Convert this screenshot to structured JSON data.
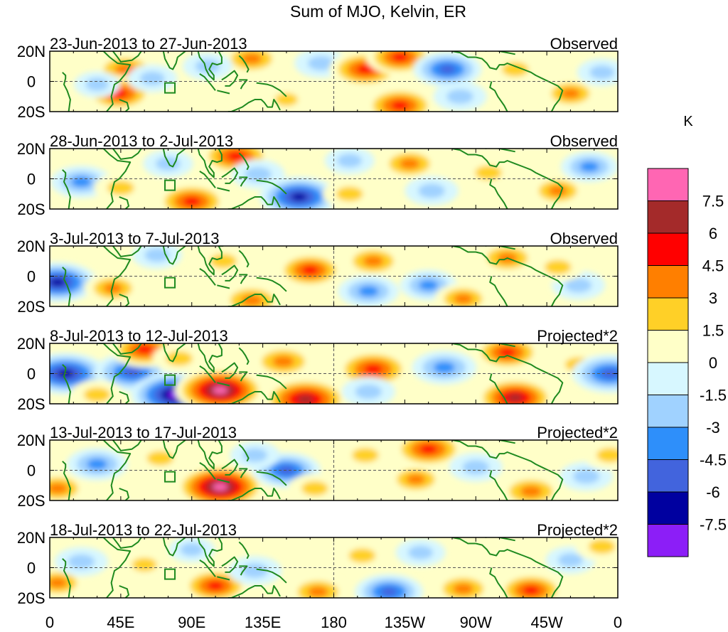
{
  "chart_data": {
    "type": "heatmap",
    "title": "Sum of MJO, Kelvin, ER",
    "colorbar_unit": "K",
    "colorbar_ticks": [
      "7.5",
      "6",
      "4.5",
      "3",
      "1.5",
      "0",
      "-1.5",
      "-3",
      "-4.5",
      "-6",
      "-7.5"
    ],
    "colorbar_colors": [
      "#ff66b3",
      "#a42a2a",
      "#ff0000",
      "#ff7f00",
      "#ffd027",
      "#ffffc8",
      "#d7f7ff",
      "#a0d2ff",
      "#2e8ffa",
      "#4264dd",
      "#0000a0",
      "#8c1ef7"
    ],
    "x_ticks": [
      "0",
      "45E",
      "90E",
      "135E",
      "180",
      "135W",
      "90W",
      "45W",
      "0"
    ],
    "x_values": [
      0,
      45,
      90,
      135,
      180,
      225,
      270,
      315,
      360
    ],
    "y_ticks": [
      "20N",
      "0",
      "20S"
    ],
    "y_values": [
      20,
      0,
      -20
    ],
    "xlim": [
      0,
      360
    ],
    "ylim": [
      -20,
      20
    ],
    "panels": [
      {
        "date_range": "23-Jun-2013 to 27-Jun-2013",
        "label": "Observed",
        "blobs": [
          {
            "lon": 48,
            "lat": 8,
            "v": 4.5
          },
          {
            "lon": 44,
            "lat": -8,
            "v": 5
          },
          {
            "lon": 65,
            "lat": 2,
            "v": -2.5
          },
          {
            "lon": 30,
            "lat": -2,
            "v": -2
          },
          {
            "lon": 128,
            "lat": 15,
            "v": 4
          },
          {
            "lon": 100,
            "lat": 10,
            "v": -2.5
          },
          {
            "lon": 172,
            "lat": 12,
            "v": -3
          },
          {
            "lon": 200,
            "lat": 8,
            "v": 5.5
          },
          {
            "lon": 222,
            "lat": 16,
            "v": 5
          },
          {
            "lon": 222,
            "lat": -16,
            "v": 5.5
          },
          {
            "lon": 252,
            "lat": 8,
            "v": -5
          },
          {
            "lon": 260,
            "lat": -10,
            "v": -3
          },
          {
            "lon": 295,
            "lat": 8,
            "v": 3
          },
          {
            "lon": 330,
            "lat": -8,
            "v": 3.5
          },
          {
            "lon": 350,
            "lat": 6,
            "v": -2.5
          },
          {
            "lon": 150,
            "lat": -12,
            "v": 2
          }
        ]
      },
      {
        "date_range": "28-Jun-2013 to 2-Jul-2013",
        "label": "Observed",
        "blobs": [
          {
            "lon": 20,
            "lat": -2,
            "v": -4
          },
          {
            "lon": 45,
            "lat": -6,
            "v": 3
          },
          {
            "lon": 90,
            "lat": -15,
            "v": 5.5
          },
          {
            "lon": 118,
            "lat": 15,
            "v": 5.5
          },
          {
            "lon": 132,
            "lat": 3,
            "v": -3
          },
          {
            "lon": 158,
            "lat": -12,
            "v": -6.5
          },
          {
            "lon": 190,
            "lat": -10,
            "v": 3
          },
          {
            "lon": 190,
            "lat": 12,
            "v": -2.5
          },
          {
            "lon": 228,
            "lat": 10,
            "v": 4
          },
          {
            "lon": 242,
            "lat": -8,
            "v": -3
          },
          {
            "lon": 278,
            "lat": 4,
            "v": 3
          },
          {
            "lon": 322,
            "lat": -8,
            "v": 3.5
          },
          {
            "lon": 342,
            "lat": 8,
            "v": -3.5
          },
          {
            "lon": 75,
            "lat": 10,
            "v": -2.5
          }
        ]
      },
      {
        "date_range": "3-Jul-2013 to 7-Jul-2013",
        "label": "Observed",
        "blobs": [
          {
            "lon": 5,
            "lat": -4,
            "v": -6.5
          },
          {
            "lon": 40,
            "lat": -8,
            "v": 3.5
          },
          {
            "lon": 68,
            "lat": 14,
            "v": -2.5
          },
          {
            "lon": 110,
            "lat": 10,
            "v": 3
          },
          {
            "lon": 128,
            "lat": -16,
            "v": 4.5
          },
          {
            "lon": 165,
            "lat": 4,
            "v": 5
          },
          {
            "lon": 205,
            "lat": 10,
            "v": 4
          },
          {
            "lon": 202,
            "lat": -10,
            "v": -4
          },
          {
            "lon": 240,
            "lat": -6,
            "v": -3.5
          },
          {
            "lon": 262,
            "lat": -15,
            "v": 3.5
          },
          {
            "lon": 290,
            "lat": 12,
            "v": 4
          },
          {
            "lon": 335,
            "lat": -6,
            "v": -3
          },
          {
            "lon": 322,
            "lat": 6,
            "v": 3
          }
        ]
      },
      {
        "date_range": "8-Jul-2013 to 12-Jul-2013",
        "label": "Projected*2",
        "blobs": [
          {
            "lon": 10,
            "lat": 0,
            "v": -7
          },
          {
            "lon": 52,
            "lat": 1,
            "v": -6
          },
          {
            "lon": 60,
            "lat": 16,
            "v": 5
          },
          {
            "lon": 80,
            "lat": -14,
            "v": -8
          },
          {
            "lon": 108,
            "lat": -11,
            "v": 8
          },
          {
            "lon": 82,
            "lat": 10,
            "v": 3
          },
          {
            "lon": 148,
            "lat": 8,
            "v": 4.5
          },
          {
            "lon": 162,
            "lat": -17,
            "v": 7.5
          },
          {
            "lon": 205,
            "lat": 3,
            "v": 6
          },
          {
            "lon": 202,
            "lat": -12,
            "v": -3
          },
          {
            "lon": 250,
            "lat": 4,
            "v": -4.5
          },
          {
            "lon": 290,
            "lat": 14,
            "v": 5
          },
          {
            "lon": 295,
            "lat": -16,
            "v": 6.5
          },
          {
            "lon": 335,
            "lat": 6,
            "v": 3
          },
          {
            "lon": 355,
            "lat": 0,
            "v": -6
          },
          {
            "lon": 30,
            "lat": -14,
            "v": 3
          }
        ]
      },
      {
        "date_range": "13-Jul-2013 to 17-Jul-2013",
        "label": "Projected*2",
        "blobs": [
          {
            "lon": 5,
            "lat": -12,
            "v": 4
          },
          {
            "lon": 30,
            "lat": 4,
            "v": -4
          },
          {
            "lon": 70,
            "lat": 8,
            "v": 3
          },
          {
            "lon": 108,
            "lat": -11,
            "v": 8
          },
          {
            "lon": 150,
            "lat": 0,
            "v": -5
          },
          {
            "lon": 168,
            "lat": -12,
            "v": 3
          },
          {
            "lon": 200,
            "lat": 10,
            "v": 3
          },
          {
            "lon": 240,
            "lat": 14,
            "v": 5.5
          },
          {
            "lon": 232,
            "lat": -6,
            "v": 3.5
          },
          {
            "lon": 270,
            "lat": 2,
            "v": -3
          },
          {
            "lon": 305,
            "lat": -14,
            "v": 4.5
          },
          {
            "lon": 340,
            "lat": -4,
            "v": -3
          },
          {
            "lon": 355,
            "lat": 10,
            "v": 3
          },
          {
            "lon": 130,
            "lat": 10,
            "v": -2.5
          }
        ]
      },
      {
        "date_range": "18-Jul-2013 to 22-Jul-2013",
        "label": "Projected*2",
        "blobs": [
          {
            "lon": 5,
            "lat": -10,
            "v": 3.5
          },
          {
            "lon": 20,
            "lat": 4,
            "v": -3
          },
          {
            "lon": 60,
            "lat": 2,
            "v": 2.5
          },
          {
            "lon": 105,
            "lat": -12,
            "v": 5
          },
          {
            "lon": 130,
            "lat": -2,
            "v": -3
          },
          {
            "lon": 170,
            "lat": -16,
            "v": 4
          },
          {
            "lon": 198,
            "lat": 8,
            "v": 3
          },
          {
            "lon": 215,
            "lat": -16,
            "v": -5
          },
          {
            "lon": 235,
            "lat": 10,
            "v": -2.5
          },
          {
            "lon": 262,
            "lat": -14,
            "v": 4
          },
          {
            "lon": 305,
            "lat": -15,
            "v": 5
          },
          {
            "lon": 330,
            "lat": 5,
            "v": -2.5
          },
          {
            "lon": 350,
            "lat": 14,
            "v": 3
          },
          {
            "lon": 90,
            "lat": 12,
            "v": -2
          }
        ]
      }
    ]
  }
}
